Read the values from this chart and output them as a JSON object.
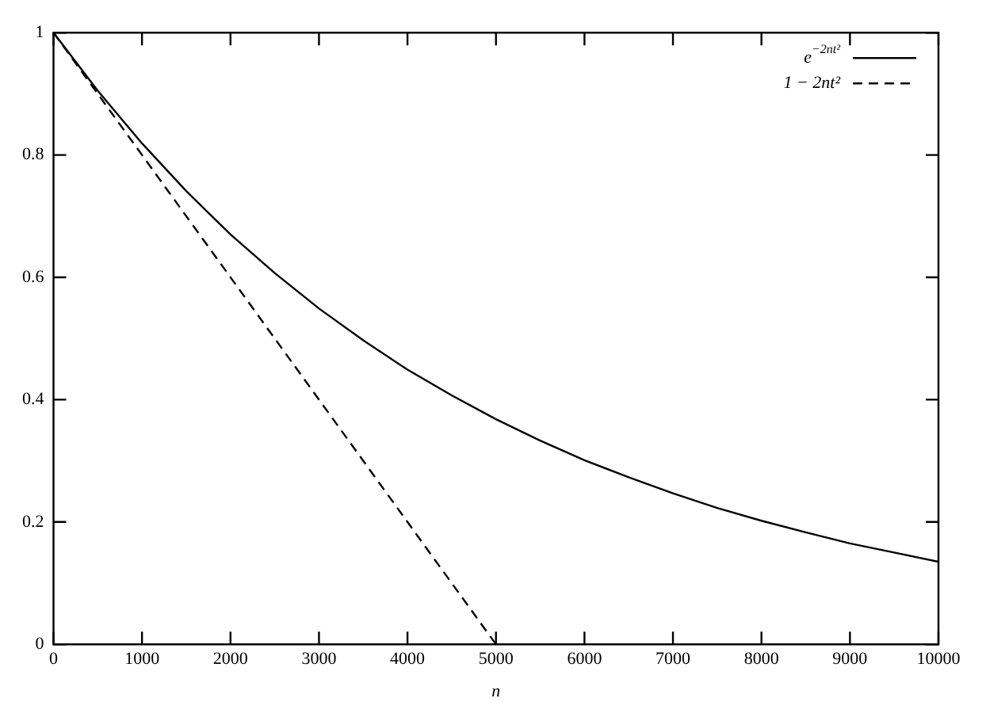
{
  "chart_data": {
    "type": "line",
    "xlabel": "n",
    "x": [
      0,
      500,
      1000,
      1500,
      2000,
      2500,
      3000,
      3500,
      4000,
      4500,
      5000,
      5500,
      6000,
      6500,
      7000,
      7500,
      8000,
      8500,
      9000,
      9500,
      10000
    ],
    "series": [
      {
        "name": "e$^{−2nt²}$",
        "color": "#000000",
        "line_style": "solid",
        "values": [
          1,
          0.905,
          0.819,
          0.741,
          0.67,
          0.607,
          0.549,
          0.497,
          0.449,
          0.407,
          0.368,
          0.333,
          0.301,
          0.273,
          0.247,
          0.223,
          0.202,
          0.183,
          0.165,
          0.15,
          0.135
        ]
      },
      {
        "name": "1 − 2nt²",
        "color": "#000000",
        "line_style": "dashed",
        "x": [
          0,
          5000
        ],
        "values": [
          1,
          0
        ]
      }
    ],
    "xlim": [
      0,
      10000
    ],
    "xticks": [
      0,
      1000,
      2000,
      3000,
      4000,
      5000,
      6000,
      7000,
      8000,
      9000,
      10000
    ],
    "ylim": [
      0,
      1
    ],
    "yticks": [
      0,
      0.2,
      0.4,
      0.6,
      0.8,
      1
    ],
    "grid": false,
    "legend": "top right",
    "marker": "none"
  }
}
